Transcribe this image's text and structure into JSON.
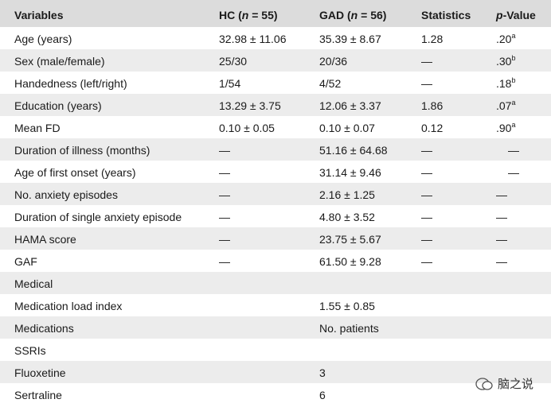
{
  "table": {
    "header": [
      [
        {
          "text": "Variables"
        }
      ],
      [
        {
          "text": "HC ("
        },
        {
          "text": "n",
          "italic": true
        },
        {
          "text": " = 55)"
        }
      ],
      [
        {
          "text": "GAD ("
        },
        {
          "text": "n",
          "italic": true
        },
        {
          "text": " = 56)"
        }
      ],
      [
        {
          "text": "Statistics"
        }
      ],
      [
        {
          "text": "p",
          "italic": true
        },
        {
          "text": "-Value"
        }
      ]
    ],
    "rows": [
      [
        "Age (years)",
        "32.98 ± 11.06",
        "35.39 ± 8.67",
        "1.28",
        {
          "text": ".20",
          "sup": "a"
        }
      ],
      [
        "Sex (male/female)",
        "25/30",
        "20/36",
        "—",
        {
          "text": ".30",
          "sup": "b"
        }
      ],
      [
        "Handedness (left/right)",
        "1/54",
        "4/52",
        "—",
        {
          "text": ".18",
          "sup": "b"
        }
      ],
      [
        "Education (years)",
        "13.29 ± 3.75",
        "12.06 ± 3.37",
        "1.86",
        {
          "text": ".07",
          "sup": "a"
        }
      ],
      [
        "Mean FD",
        "0.10 ± 0.05",
        "0.10 ± 0.07",
        "0.12",
        {
          "text": ".90",
          "sup": "a"
        }
      ],
      [
        "Duration of illness (months)",
        "—",
        "51.16 ± 64.68",
        "—",
        "—"
      ],
      [
        "Age of first onset (years)",
        "—",
        "31.14 ± 9.46",
        "—",
        "—"
      ],
      [
        "No. anxiety episodes",
        "—",
        "2.16 ± 1.25",
        "—",
        "—"
      ],
      [
        "Duration of single anxiety episode",
        "—",
        "4.80 ± 3.52",
        "—",
        "—"
      ],
      [
        "HAMA score",
        "—",
        "23.75 ± 5.67",
        "—",
        "—"
      ],
      [
        "GAF",
        "—",
        "61.50 ± 9.28",
        "—",
        "—"
      ],
      [
        "Medical",
        null,
        null,
        null,
        null
      ],
      [
        "Medication load index",
        null,
        "1.55 ± 0.85",
        null,
        null
      ],
      [
        "Medications",
        null,
        "No. patients",
        null,
        null
      ],
      [
        "SSRIs",
        null,
        null,
        null,
        null
      ],
      [
        "Fluoxetine",
        null,
        "3",
        null,
        null
      ],
      [
        "Sertraline",
        null,
        "6",
        null,
        null
      ]
    ]
  },
  "watermark": "脑之说"
}
